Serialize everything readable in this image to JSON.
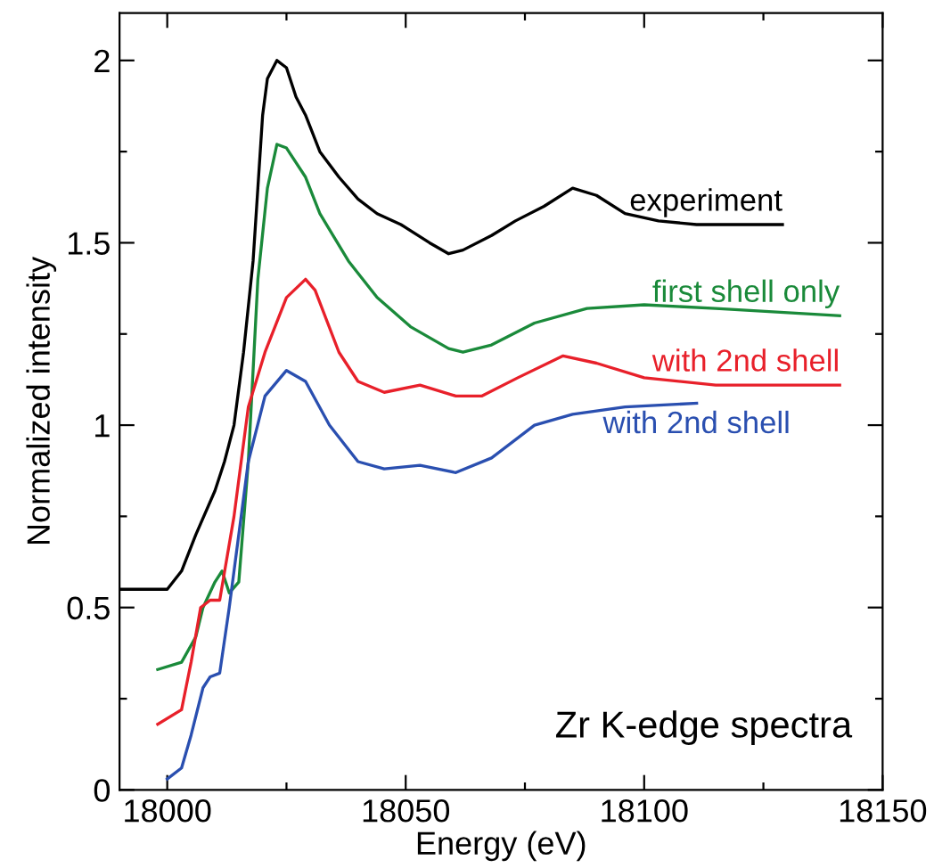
{
  "chart_data": {
    "type": "line",
    "xlabel": "Energy (eV)",
    "ylabel": "Normalized intensity",
    "xlim": [
      17990,
      18150
    ],
    "ylim": [
      0,
      2.13
    ],
    "xticks": [
      18000,
      {
        "value": 18025,
        "label": null
      },
      18050,
      {
        "value": 18075,
        "label": null
      },
      18100,
      {
        "value": 18125,
        "label": null
      },
      18150
    ],
    "yticks": [
      0,
      {
        "value": 0.25,
        "label": null
      },
      0.5,
      {
        "value": 0.75,
        "label": null
      },
      1,
      {
        "value": 1.25,
        "label": null
      },
      1.5,
      {
        "value": 1.75,
        "label": null
      },
      2
    ],
    "grid": false,
    "legend": false,
    "marker": "none",
    "line_style": "solid",
    "annotations": [
      "Zr K-edge spectra"
    ],
    "series": [
      {
        "name": "experiment",
        "color": "#000000",
        "x": [
          17990,
          18000,
          18003,
          18006,
          18010,
          18012,
          18014,
          18016,
          18018,
          18019,
          18020,
          18021,
          18023,
          18025,
          18027,
          18029,
          18032,
          18036,
          18040,
          18044,
          18049,
          18055,
          18059,
          18062,
          18068,
          18073,
          18079,
          18085,
          18090,
          18096,
          18103,
          18111,
          18118,
          18129
        ],
        "values": [
          0.55,
          0.55,
          0.6,
          0.7,
          0.82,
          0.9,
          1.0,
          1.2,
          1.45,
          1.65,
          1.85,
          1.95,
          2.0,
          1.98,
          1.9,
          1.85,
          1.75,
          1.68,
          1.62,
          1.58,
          1.55,
          1.5,
          1.47,
          1.48,
          1.52,
          1.56,
          1.6,
          1.65,
          1.63,
          1.58,
          1.56,
          1.55,
          1.55,
          1.55
        ]
      },
      {
        "name": "first shell only",
        "color": "#1a8a3a",
        "x": [
          17998,
          18003,
          18006,
          18007.5,
          18010,
          18011.5,
          18013,
          18015,
          18017,
          18019,
          18021,
          18023,
          18025,
          18029,
          18032,
          18038,
          18044,
          18051,
          18059,
          18062,
          18068,
          18077,
          18088,
          18100,
          18115,
          18141
        ],
        "values": [
          0.33,
          0.35,
          0.42,
          0.5,
          0.57,
          0.6,
          0.54,
          0.57,
          0.9,
          1.4,
          1.65,
          1.77,
          1.76,
          1.68,
          1.58,
          1.45,
          1.35,
          1.27,
          1.21,
          1.2,
          1.22,
          1.28,
          1.32,
          1.33,
          1.32,
          1.3
        ]
      },
      {
        "name": "with 2nd shell",
        "color": "#e8202a",
        "x": [
          17998,
          18003,
          18005,
          18007,
          18009,
          18011,
          18014,
          18017,
          18020.5,
          18025,
          18029,
          18031,
          18036,
          18040,
          18045.5,
          18053,
          18060.5,
          18066,
          18073.5,
          18083,
          18090,
          18100,
          18115,
          18141
        ],
        "values": [
          0.18,
          0.22,
          0.35,
          0.5,
          0.52,
          0.52,
          0.75,
          1.05,
          1.2,
          1.35,
          1.4,
          1.37,
          1.2,
          1.12,
          1.09,
          1.11,
          1.08,
          1.08,
          1.13,
          1.19,
          1.17,
          1.13,
          1.11,
          1.11
        ]
      },
      {
        "name": "with 2nd shell",
        "color": "#2a4fb0",
        "x": [
          18000,
          18003,
          18005,
          18007.5,
          18009,
          18011,
          18013,
          18017,
          18020.5,
          18025,
          18029,
          18034,
          18040,
          18045.5,
          18053,
          18060.5,
          18068,
          18077,
          18085,
          18096,
          18111
        ],
        "values": [
          0.03,
          0.06,
          0.15,
          0.28,
          0.31,
          0.32,
          0.5,
          0.9,
          1.08,
          1.15,
          1.12,
          1.0,
          0.9,
          0.88,
          0.89,
          0.87,
          0.91,
          1.0,
          1.03,
          1.05,
          1.06
        ]
      }
    ]
  }
}
